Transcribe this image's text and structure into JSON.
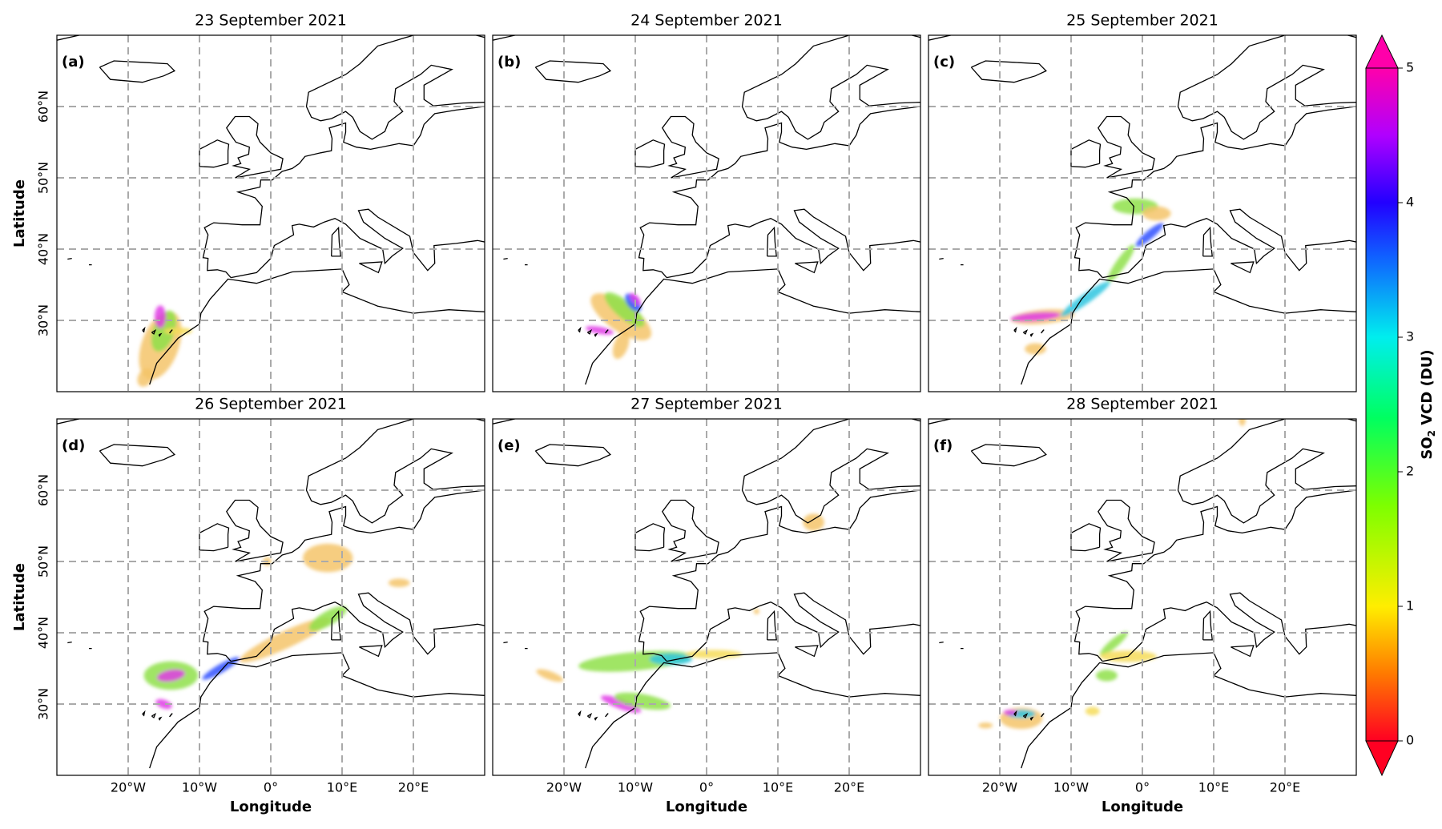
{
  "map": {
    "lonlim": [
      -30,
      30
    ],
    "latlim": [
      20,
      70
    ],
    "lonticks": [
      {
        "value": -20,
        "label": "20°W"
      },
      {
        "value": -10,
        "label": "10°W"
      },
      {
        "value": 0,
        "label": "0°"
      },
      {
        "value": 10,
        "label": "10°E"
      },
      {
        "value": 20,
        "label": "20°E"
      }
    ],
    "latticks": [
      {
        "value": 30,
        "label": "30°N"
      },
      {
        "value": 40,
        "label": "40°N"
      },
      {
        "value": 50,
        "label": "50°N"
      },
      {
        "value": 60,
        "label": "60°N"
      }
    ],
    "xlabel": "Longitude",
    "ylabel": "Latitude"
  },
  "panels": [
    {
      "label": "(a)",
      "title": "23 September 2021"
    },
    {
      "label": "(b)",
      "title": "24 September 2021"
    },
    {
      "label": "(c)",
      "title": "25 September 2021"
    },
    {
      "label": "(d)",
      "title": "26 September 2021"
    },
    {
      "label": "(e)",
      "title": "27 September 2021"
    },
    {
      "label": "(f)",
      "title": "28 September 2021"
    }
  ],
  "colorbar": {
    "label": {
      "main": "SO",
      "sub": "2",
      "rest": " VCD (DU)"
    },
    "lim": [
      0,
      5
    ],
    "ticks": [
      0,
      1,
      2,
      3,
      4,
      5
    ]
  }
}
